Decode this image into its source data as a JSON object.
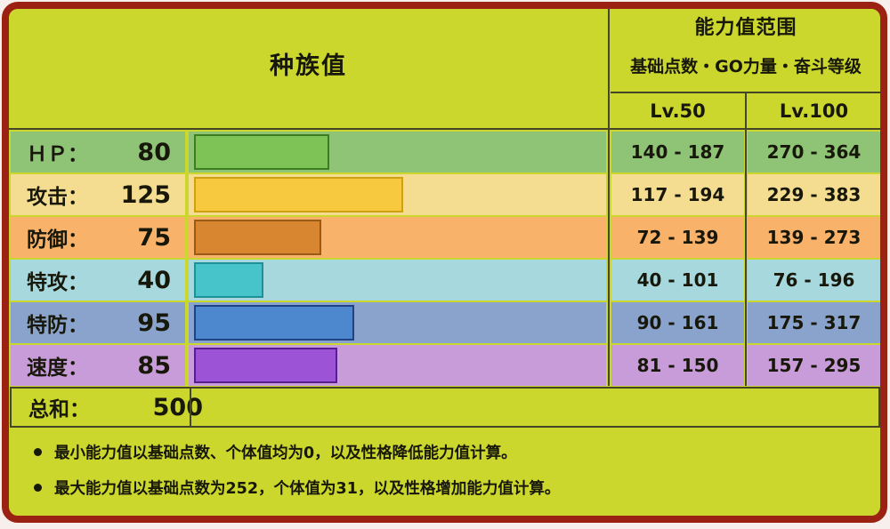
{
  "table": {
    "left_header": "种族值",
    "right_header": {
      "title": "能力值范围",
      "subtitle": "基础点数・GO力量・奋斗等级",
      "lv50": "Lv.50",
      "lv100": "Lv.100"
    },
    "rows": [
      {
        "label": "ＨＰ：",
        "value": "80",
        "lv50": "140 - 187",
        "lv100": "270 - 364",
        "row_bg": "#8fc477",
        "bar_color": "#7dc355",
        "bar_border": "#3c7d22"
      },
      {
        "label": "攻击：",
        "value": "125",
        "lv50": "117 - 194",
        "lv100": "229 - 383",
        "row_bg": "#f4dd90",
        "bar_color": "#f6c93e",
        "bar_border": "#cfa012"
      },
      {
        "label": "防御：",
        "value": "75",
        "lv50": "72 - 139",
        "lv100": "139 - 273",
        "row_bg": "#f8b269",
        "bar_color": "#d8862f",
        "bar_border": "#995a17"
      },
      {
        "label": "特攻：",
        "value": "40",
        "lv50": "40 - 101",
        "lv100": "76 - 196",
        "row_bg": "#a6d8de",
        "bar_color": "#46c4ca",
        "bar_border": "#1f8f98"
      },
      {
        "label": "特防：",
        "value": "95",
        "lv50": "90 - 161",
        "lv100": "175 - 317",
        "row_bg": "#8aa3cc",
        "bar_color": "#4d87cd",
        "bar_border": "#1f4186"
      },
      {
        "label": "速度：",
        "value": "85",
        "lv50": "81 - 150",
        "lv100": "157 - 295",
        "row_bg": "#c89cd8",
        "bar_color": "#9c53d6",
        "bar_border": "#571e8f"
      }
    ],
    "total": {
      "label": "总和：",
      "value": "500"
    },
    "notes": [
      "最小能力值以基础点数、个体值均为0，以及性格降低能力值计算。",
      "最大能力值以基础点数为252，个体值为31，以及性格增加能力值计算。"
    ]
  },
  "colors": {
    "page_background": "#f6efec",
    "card_background": "#ccd72e",
    "card_border": "#9b2213",
    "grid_line": "#454426",
    "text": "#17170a"
  },
  "chart_data": {
    "type": "bar",
    "title": "种族值",
    "categories": [
      "HP",
      "攻击",
      "防御",
      "特攻",
      "特防",
      "速度"
    ],
    "values": [
      80,
      125,
      75,
      40,
      95,
      85
    ],
    "total": 500,
    "xlim": [
      0,
      255
    ],
    "bar_colors": [
      "#7dc355",
      "#f6c93e",
      "#d8862f",
      "#46c4ca",
      "#4d87cd",
      "#9c53d6"
    ],
    "ranges_lv50": [
      [
        140,
        187
      ],
      [
        117,
        194
      ],
      [
        72,
        139
      ],
      [
        40,
        101
      ],
      [
        90,
        161
      ],
      [
        81,
        150
      ]
    ],
    "ranges_lv100": [
      [
        270,
        364
      ],
      [
        229,
        383
      ],
      [
        139,
        273
      ],
      [
        76,
        196
      ],
      [
        175,
        317
      ],
      [
        157,
        295
      ]
    ],
    "range_header": "能力值范围",
    "range_subheader": "基础点数・GO力量・奋斗等级",
    "range_columns": [
      "Lv.50",
      "Lv.100"
    ]
  }
}
